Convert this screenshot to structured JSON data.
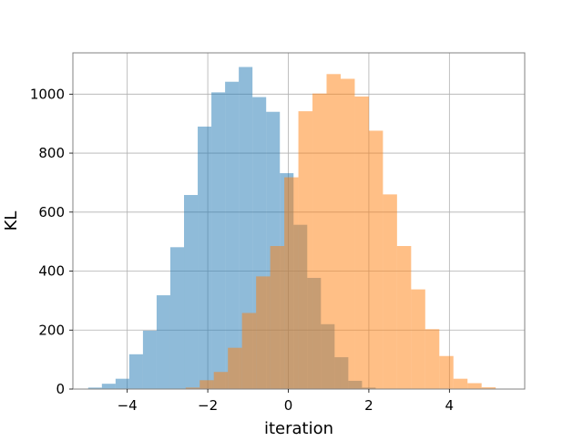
{
  "chart_data": {
    "type": "bar",
    "title": "",
    "xlabel": "iteration",
    "ylabel": "KL",
    "xlim": [
      -5.35,
      5.87
    ],
    "ylim": [
      0,
      1140
    ],
    "grid": true,
    "legend": "none",
    "x_ticks": [
      -4,
      -2,
      0,
      2,
      4
    ],
    "y_ticks": [
      0,
      200,
      400,
      600,
      800,
      1000
    ],
    "x_tick_labels": [
      "−4",
      "−2",
      "0",
      "2",
      "4"
    ],
    "y_tick_labels": [
      "0",
      "200",
      "400",
      "600",
      "800",
      "1000"
    ],
    "series": [
      {
        "color": "#1f77b4",
        "opacity": 0.5,
        "bin_edges": [
          -4.97,
          -4.63,
          -4.29,
          -3.95,
          -3.61,
          -3.27,
          -2.93,
          -2.59,
          -2.25,
          -1.91,
          -1.57,
          -1.23,
          -0.89,
          -0.55,
          -0.21,
          0.13,
          0.47,
          0.81,
          1.15,
          1.49,
          1.83,
          2.17
        ],
        "counts": [
          5,
          18,
          35,
          118,
          198,
          318,
          481,
          658,
          890,
          1006,
          1042,
          1092,
          990,
          940,
          732,
          557,
          377,
          220,
          108,
          28,
          5
        ]
      },
      {
        "color": "#ff7f0e",
        "opacity": 0.5,
        "bin_edges": [
          -2.55,
          -2.2,
          -1.85,
          -1.5,
          -1.15,
          -0.8,
          -0.45,
          -0.1,
          0.25,
          0.6,
          0.95,
          1.3,
          1.65,
          2.0,
          2.35,
          2.7,
          3.05,
          3.4,
          3.75,
          4.1,
          4.45,
          4.8,
          5.15
        ],
        "counts": [
          5,
          30,
          58,
          140,
          258,
          382,
          485,
          718,
          942,
          1002,
          1068,
          1052,
          992,
          876,
          660,
          485,
          338,
          203,
          112,
          35,
          20,
          6
        ]
      }
    ]
  }
}
